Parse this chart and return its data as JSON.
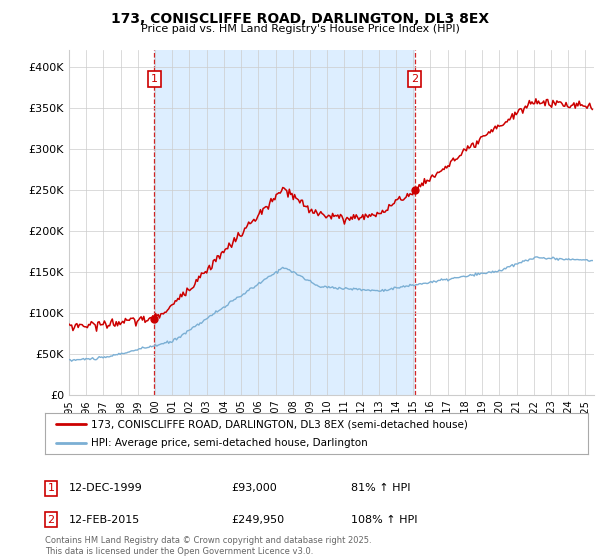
{
  "title1": "173, CONISCLIFFE ROAD, DARLINGTON, DL3 8EX",
  "title2": "Price paid vs. HM Land Registry's House Price Index (HPI)",
  "ylabel_ticks": [
    "£0",
    "£50K",
    "£100K",
    "£150K",
    "£200K",
    "£250K",
    "£300K",
    "£350K",
    "£400K"
  ],
  "ytick_values": [
    0,
    50000,
    100000,
    150000,
    200000,
    250000,
    300000,
    350000,
    400000
  ],
  "ylim": [
    0,
    420000
  ],
  "purchase1_date": "12-DEC-1999",
  "purchase1_price": 93000,
  "purchase1_price_str": "£93,000",
  "purchase1_pct": "81%",
  "purchase2_date": "12-FEB-2015",
  "purchase2_price": 249950,
  "purchase2_price_str": "£249,950",
  "purchase2_pct": "108%",
  "legend1": "173, CONISCLIFFE ROAD, DARLINGTON, DL3 8EX (semi-detached house)",
  "legend2": "HPI: Average price, semi-detached house, Darlington",
  "footer": "Contains HM Land Registry data © Crown copyright and database right 2025.\nThis data is licensed under the Open Government Licence v3.0.",
  "red_color": "#cc0000",
  "blue_color": "#7bafd4",
  "vline_color": "#cc0000",
  "shade_color": "#ddeeff",
  "background_color": "#ffffff",
  "grid_color": "#cccccc",
  "purchase1_x": 1999.958,
  "purchase2_x": 2015.083,
  "xmin": 1995,
  "xmax": 2025.5
}
